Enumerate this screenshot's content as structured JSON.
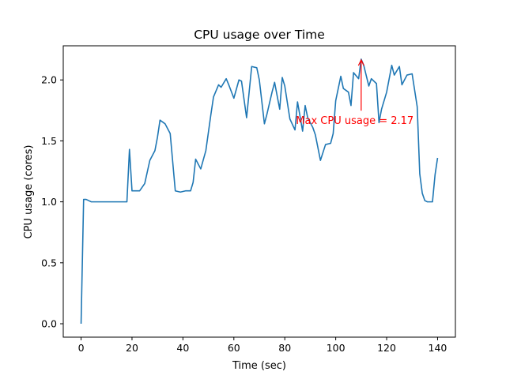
{
  "chart_data": {
    "type": "line",
    "title": "CPU usage over Time",
    "xlabel": "Time (sec)",
    "ylabel": "CPU usage (cores)",
    "xlim": [
      -7,
      147
    ],
    "ylim": [
      -0.11,
      2.28
    ],
    "xticks": [
      0,
      20,
      40,
      60,
      80,
      100,
      120,
      140
    ],
    "yticks": [
      0.0,
      0.5,
      1.0,
      1.5,
      2.0
    ],
    "xtick_labels": [
      "0",
      "20",
      "40",
      "60",
      "80",
      "100",
      "120",
      "140"
    ],
    "ytick_labels": [
      "0.0",
      "0.5",
      "1.0",
      "1.5",
      "2.0"
    ],
    "grid": false,
    "colors": {
      "line": "#1f77b4",
      "annotation": "#ff0000",
      "axes": "#000000"
    },
    "series": [
      {
        "x": [
          0,
          1,
          2,
          3,
          4,
          6,
          8,
          10,
          12,
          14,
          16,
          18,
          19,
          20,
          21,
          23,
          25,
          27,
          29,
          30,
          31,
          33,
          34,
          35,
          37,
          39,
          41,
          43,
          44,
          45,
          47,
          49,
          51,
          52,
          54,
          55,
          57,
          58,
          60,
          62,
          63,
          65,
          66,
          67,
          69,
          70,
          72,
          73,
          75,
          76,
          78,
          79,
          80,
          82,
          84,
          85,
          87,
          88,
          89,
          91,
          92,
          94,
          96,
          98,
          99,
          100,
          102,
          103,
          105,
          106,
          107,
          109,
          110,
          111,
          113,
          114,
          116,
          117,
          118,
          120,
          122,
          123,
          125,
          126,
          128,
          130,
          132,
          133,
          134,
          135,
          136,
          137,
          138,
          139,
          140
        ],
        "y": [
          0.0,
          1.02,
          1.02,
          1.01,
          1.0,
          1.0,
          1.0,
          1.0,
          1.0,
          1.0,
          1.0,
          1.0,
          1.43,
          1.09,
          1.09,
          1.09,
          1.15,
          1.34,
          1.42,
          1.53,
          1.67,
          1.64,
          1.6,
          1.56,
          1.09,
          1.08,
          1.09,
          1.09,
          1.16,
          1.35,
          1.27,
          1.42,
          1.72,
          1.86,
          1.96,
          1.94,
          2.01,
          1.96,
          1.85,
          2.0,
          1.99,
          1.69,
          1.9,
          2.11,
          2.1,
          2.0,
          1.64,
          1.72,
          1.9,
          1.98,
          1.76,
          2.02,
          1.95,
          1.68,
          1.59,
          1.82,
          1.58,
          1.79,
          1.69,
          1.61,
          1.55,
          1.34,
          1.47,
          1.48,
          1.56,
          1.83,
          2.03,
          1.93,
          1.9,
          1.79,
          2.06,
          2.01,
          2.17,
          2.12,
          1.95,
          2.01,
          1.97,
          1.65,
          1.76,
          1.9,
          2.12,
          2.04,
          2.11,
          1.96,
          2.04,
          2.05,
          1.78,
          1.23,
          1.07,
          1.01,
          1.0,
          1.0,
          1.0,
          1.22,
          1.36
        ]
      }
    ],
    "annotation": {
      "text": "Max CPU usage = 2.17",
      "xy": [
        110,
        2.17
      ],
      "xytext": [
        85,
        1.67
      ]
    }
  }
}
